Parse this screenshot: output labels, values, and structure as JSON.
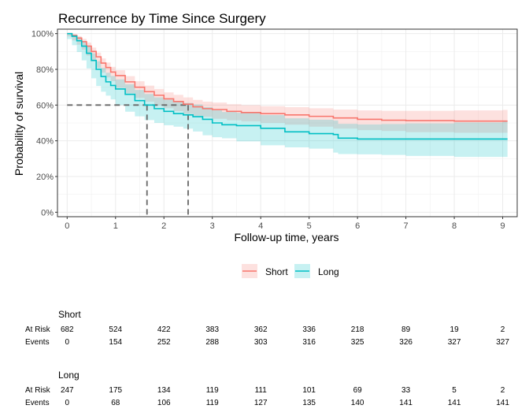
{
  "chart_data": {
    "type": "line",
    "title": "Recurrence by Time Since Surgery",
    "xlabel": "Follow-up time, years",
    "ylabel": "Probability of survival",
    "xlim": [
      -0.2,
      9.3
    ],
    "ylim": [
      0,
      1
    ],
    "x_ticks": [
      0,
      1,
      2,
      3,
      4,
      5,
      6,
      7,
      8,
      9
    ],
    "y_ticks": [
      0,
      0.2,
      0.4,
      0.6,
      0.8,
      1.0
    ],
    "y_tick_labels": [
      "0%",
      "20%",
      "40%",
      "60%",
      "80%",
      "100%"
    ],
    "grid": true,
    "legend_position": "bottom",
    "median_reference": {
      "y": 0.6,
      "x_values": [
        1.65,
        2.5
      ]
    },
    "series": [
      {
        "name": "Short",
        "color": "#F8766D",
        "band_color": "#F8766D",
        "points": [
          [
            0,
            1.0
          ],
          [
            0.1,
            0.99
          ],
          [
            0.2,
            0.975
          ],
          [
            0.3,
            0.955
          ],
          [
            0.4,
            0.93
          ],
          [
            0.5,
            0.9
          ],
          [
            0.6,
            0.87
          ],
          [
            0.7,
            0.835
          ],
          [
            0.8,
            0.81
          ],
          [
            0.9,
            0.785
          ],
          [
            1.0,
            0.765
          ],
          [
            1.2,
            0.73
          ],
          [
            1.4,
            0.7
          ],
          [
            1.6,
            0.675
          ],
          [
            1.8,
            0.655
          ],
          [
            2.0,
            0.635
          ],
          [
            2.2,
            0.62
          ],
          [
            2.4,
            0.605
          ],
          [
            2.6,
            0.59
          ],
          [
            2.8,
            0.58
          ],
          [
            3.0,
            0.575
          ],
          [
            3.3,
            0.565
          ],
          [
            3.6,
            0.558
          ],
          [
            4.0,
            0.552
          ],
          [
            4.5,
            0.545
          ],
          [
            5.0,
            0.537
          ],
          [
            5.5,
            0.528
          ],
          [
            6.0,
            0.52
          ],
          [
            6.5,
            0.515
          ],
          [
            7.0,
            0.513
          ],
          [
            8.0,
            0.51
          ],
          [
            9.0,
            0.51
          ],
          [
            9.1,
            0.51
          ]
        ],
        "lower": [
          [
            0,
            1.0
          ],
          [
            0.1,
            0.985
          ],
          [
            0.2,
            0.962
          ],
          [
            0.3,
            0.938
          ],
          [
            0.4,
            0.91
          ],
          [
            0.5,
            0.877
          ],
          [
            0.6,
            0.845
          ],
          [
            0.7,
            0.808
          ],
          [
            0.8,
            0.781
          ],
          [
            0.9,
            0.755
          ],
          [
            1.0,
            0.734
          ],
          [
            1.2,
            0.697
          ],
          [
            1.4,
            0.666
          ],
          [
            1.6,
            0.64
          ],
          [
            1.8,
            0.619
          ],
          [
            2.0,
            0.598
          ],
          [
            2.2,
            0.582
          ],
          [
            2.4,
            0.566
          ],
          [
            2.6,
            0.55
          ],
          [
            2.8,
            0.54
          ],
          [
            3.0,
            0.534
          ],
          [
            3.3,
            0.523
          ],
          [
            3.6,
            0.515
          ],
          [
            4.0,
            0.508
          ],
          [
            4.5,
            0.5
          ],
          [
            5.0,
            0.49
          ],
          [
            5.5,
            0.479
          ],
          [
            6.0,
            0.468
          ],
          [
            6.5,
            0.46
          ],
          [
            7.0,
            0.455
          ],
          [
            8.0,
            0.448
          ],
          [
            9.0,
            0.445
          ],
          [
            9.1,
            0.445
          ]
        ],
        "upper": [
          [
            0,
            1.0
          ],
          [
            0.1,
            0.995
          ],
          [
            0.2,
            0.986
          ],
          [
            0.3,
            0.971
          ],
          [
            0.4,
            0.95
          ],
          [
            0.5,
            0.922
          ],
          [
            0.6,
            0.894
          ],
          [
            0.7,
            0.861
          ],
          [
            0.8,
            0.838
          ],
          [
            0.9,
            0.814
          ],
          [
            1.0,
            0.795
          ],
          [
            1.2,
            0.762
          ],
          [
            1.4,
            0.733
          ],
          [
            1.6,
            0.709
          ],
          [
            1.8,
            0.69
          ],
          [
            2.0,
            0.671
          ],
          [
            2.2,
            0.657
          ],
          [
            2.4,
            0.643
          ],
          [
            2.6,
            0.629
          ],
          [
            2.8,
            0.619
          ],
          [
            3.0,
            0.614
          ],
          [
            3.3,
            0.605
          ],
          [
            3.6,
            0.599
          ],
          [
            4.0,
            0.594
          ],
          [
            4.5,
            0.588
          ],
          [
            5.0,
            0.582
          ],
          [
            5.5,
            0.575
          ],
          [
            6.0,
            0.57
          ],
          [
            6.5,
            0.568
          ],
          [
            7.0,
            0.568
          ],
          [
            8.0,
            0.57
          ],
          [
            9.0,
            0.573
          ],
          [
            9.1,
            0.573
          ]
        ]
      },
      {
        "name": "Long",
        "color": "#00BFC4",
        "band_color": "#00BFC4",
        "points": [
          [
            0,
            1.0
          ],
          [
            0.1,
            0.985
          ],
          [
            0.2,
            0.96
          ],
          [
            0.3,
            0.93
          ],
          [
            0.4,
            0.89
          ],
          [
            0.5,
            0.85
          ],
          [
            0.6,
            0.8
          ],
          [
            0.7,
            0.76
          ],
          [
            0.8,
            0.73
          ],
          [
            0.9,
            0.71
          ],
          [
            1.0,
            0.69
          ],
          [
            1.2,
            0.66
          ],
          [
            1.4,
            0.625
          ],
          [
            1.6,
            0.6
          ],
          [
            1.8,
            0.58
          ],
          [
            2.0,
            0.565
          ],
          [
            2.2,
            0.552
          ],
          [
            2.4,
            0.545
          ],
          [
            2.6,
            0.535
          ],
          [
            2.8,
            0.52
          ],
          [
            3.0,
            0.5
          ],
          [
            3.2,
            0.49
          ],
          [
            3.5,
            0.485
          ],
          [
            4.0,
            0.47
          ],
          [
            4.5,
            0.45
          ],
          [
            5.0,
            0.44
          ],
          [
            5.5,
            0.435
          ],
          [
            5.6,
            0.415
          ],
          [
            6.0,
            0.41
          ],
          [
            6.5,
            0.41
          ],
          [
            7.0,
            0.41
          ],
          [
            8.0,
            0.41
          ],
          [
            9.0,
            0.41
          ],
          [
            9.1,
            0.41
          ]
        ],
        "lower": [
          [
            0,
            1.0
          ],
          [
            0.1,
            0.97
          ],
          [
            0.2,
            0.935
          ],
          [
            0.3,
            0.897
          ],
          [
            0.4,
            0.85
          ],
          [
            0.5,
            0.805
          ],
          [
            0.6,
            0.75
          ],
          [
            0.7,
            0.707
          ],
          [
            0.8,
            0.675
          ],
          [
            0.9,
            0.653
          ],
          [
            1.0,
            0.632
          ],
          [
            1.2,
            0.6
          ],
          [
            1.4,
            0.563
          ],
          [
            1.6,
            0.537
          ],
          [
            1.8,
            0.516
          ],
          [
            2.0,
            0.5
          ],
          [
            2.2,
            0.487
          ],
          [
            2.4,
            0.479
          ],
          [
            2.6,
            0.468
          ],
          [
            2.8,
            0.452
          ],
          [
            3.0,
            0.431
          ],
          [
            3.2,
            0.42
          ],
          [
            3.5,
            0.414
          ],
          [
            4.0,
            0.397
          ],
          [
            4.5,
            0.375
          ],
          [
            5.0,
            0.363
          ],
          [
            5.5,
            0.356
          ],
          [
            5.6,
            0.334
          ],
          [
            6.0,
            0.326
          ],
          [
            6.5,
            0.324
          ],
          [
            7.0,
            0.321
          ],
          [
            8.0,
            0.315
          ],
          [
            9.0,
            0.31
          ],
          [
            9.1,
            0.31
          ]
        ],
        "upper": [
          [
            0,
            1.0
          ],
          [
            0.1,
            0.995
          ],
          [
            0.2,
            0.98
          ],
          [
            0.3,
            0.958
          ],
          [
            0.4,
            0.925
          ],
          [
            0.5,
            0.89
          ],
          [
            0.6,
            0.845
          ],
          [
            0.7,
            0.808
          ],
          [
            0.8,
            0.781
          ],
          [
            0.9,
            0.763
          ],
          [
            1.0,
            0.744
          ],
          [
            1.2,
            0.717
          ],
          [
            1.4,
            0.685
          ],
          [
            1.6,
            0.662
          ],
          [
            1.8,
            0.643
          ],
          [
            2.0,
            0.63
          ],
          [
            2.2,
            0.618
          ],
          [
            2.4,
            0.612
          ],
          [
            2.6,
            0.603
          ],
          [
            2.8,
            0.589
          ],
          [
            3.0,
            0.571
          ],
          [
            3.2,
            0.561
          ],
          [
            3.5,
            0.557
          ],
          [
            4.0,
            0.544
          ],
          [
            4.5,
            0.526
          ],
          [
            5.0,
            0.518
          ],
          [
            5.5,
            0.514
          ],
          [
            5.6,
            0.495
          ],
          [
            6.0,
            0.492
          ],
          [
            6.5,
            0.494
          ],
          [
            7.0,
            0.497
          ],
          [
            8.0,
            0.503
          ],
          [
            9.0,
            0.508
          ],
          [
            9.1,
            0.508
          ]
        ]
      }
    ]
  },
  "risk_table": {
    "times": [
      0,
      1,
      2,
      3,
      4,
      5,
      6,
      7,
      8,
      9
    ],
    "row_labels": {
      "at_risk": "At Risk",
      "events": "Events"
    },
    "groups": [
      {
        "name": "Short",
        "at_risk": [
          "682",
          "524",
          "422",
          "383",
          "362",
          "336",
          "218",
          "89",
          "19",
          "2"
        ],
        "events": [
          "0",
          "154",
          "252",
          "288",
          "303",
          "316",
          "325",
          "326",
          "327",
          "327"
        ]
      },
      {
        "name": "Long",
        "at_risk": [
          "247",
          "175",
          "134",
          "119",
          "111",
          "101",
          "69",
          "33",
          "5",
          "2"
        ],
        "events": [
          "0",
          "68",
          "106",
          "119",
          "127",
          "135",
          "140",
          "141",
          "141",
          "141"
        ]
      }
    ]
  }
}
